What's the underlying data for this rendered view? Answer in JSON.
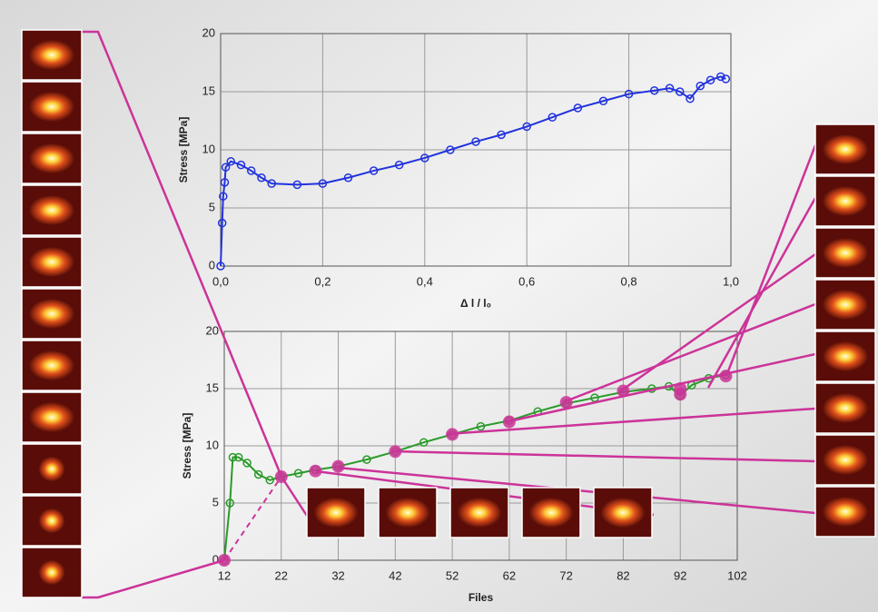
{
  "chart_data": [
    {
      "type": "line",
      "x_label": "Δ l / l₀",
      "y_label": "Stress [MPa]",
      "xlim": [
        0,
        1
      ],
      "ylim": [
        0,
        20
      ],
      "xticks": [
        {
          "value": 0,
          "label": "0,0"
        },
        {
          "value": 0.2,
          "label": "0,2"
        },
        {
          "value": 0.4,
          "label": "0,4"
        },
        {
          "value": 0.6,
          "label": "0,6"
        },
        {
          "value": 0.8,
          "label": "0,8"
        },
        {
          "value": 1,
          "label": "1,0"
        }
      ],
      "yticks": [
        0,
        5,
        10,
        15,
        20
      ],
      "grid": true,
      "series": [
        {
          "color": "#2233dd",
          "x": [
            0,
            0.003,
            0.005,
            0.008,
            0.01,
            0.02,
            0.04,
            0.06,
            0.08,
            0.1,
            0.15,
            0.2,
            0.25,
            0.3,
            0.35,
            0.4,
            0.45,
            0.5,
            0.55,
            0.6,
            0.65,
            0.7,
            0.75,
            0.8,
            0.85,
            0.88,
            0.9,
            0.92,
            0.94,
            0.96,
            0.98,
            0.99
          ],
          "values": [
            0,
            3.7,
            6,
            7.2,
            8.5,
            9,
            8.7,
            8.2,
            7.6,
            7.1,
            7.0,
            7.1,
            7.6,
            8.2,
            8.7,
            9.3,
            10.0,
            10.7,
            11.3,
            12.0,
            12.8,
            13.6,
            14.2,
            14.8,
            15.1,
            15.3,
            15.0,
            14.4,
            15.5,
            16.0,
            16.3,
            16.1
          ]
        }
      ]
    },
    {
      "type": "line",
      "x_label": "Files",
      "y_label": "Stress [MPa]",
      "xlim": [
        12,
        102
      ],
      "ylim": [
        0,
        20
      ],
      "xticks": [
        12,
        22,
        32,
        42,
        52,
        62,
        72,
        82,
        92,
        102
      ],
      "yticks": [
        0,
        5,
        10,
        15,
        20
      ],
      "grid": true,
      "series": [
        {
          "color": "#2a9a2a",
          "x": [
            12,
            13,
            13.5,
            14.5,
            16,
            18,
            20,
            22,
            25,
            28,
            32,
            37,
            42,
            47,
            52,
            57,
            62,
            67,
            72,
            77,
            82,
            87,
            90,
            92,
            94,
            97,
            100
          ],
          "values": [
            0,
            5,
            9,
            9,
            8.5,
            7.5,
            7.0,
            7.3,
            7.6,
            7.9,
            8.2,
            8.8,
            9.5,
            10.3,
            11.0,
            11.7,
            12.2,
            13.0,
            13.7,
            14.2,
            14.7,
            15.0,
            15.2,
            14.4,
            15.3,
            15.9,
            16.2
          ]
        },
        {
          "color": "#cc3399",
          "markers_only": true,
          "x": [
            12,
            22,
            28,
            32,
            42,
            52,
            62,
            72,
            82,
            92,
            92,
            100
          ],
          "values": [
            0,
            7.3,
            7.8,
            8.2,
            9.5,
            11.0,
            12.1,
            13.8,
            14.8,
            15.0,
            14.5,
            16.1
          ]
        }
      ]
    }
  ]
}
